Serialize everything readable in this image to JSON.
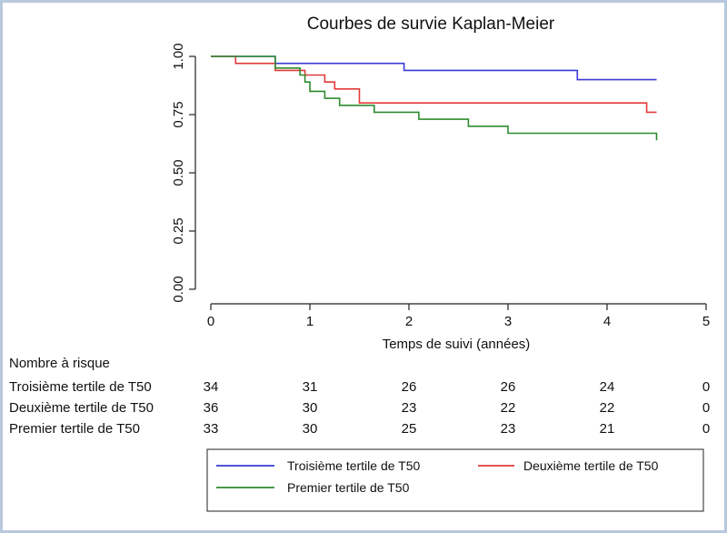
{
  "chart_data": {
    "type": "line",
    "title": "Courbes de survie Kaplan-Meier",
    "xlabel": "Temps de suivi (années)",
    "ylabel": "",
    "xlim": [
      0,
      5
    ],
    "ylim": [
      0,
      1
    ],
    "x_ticks": [
      "0",
      "1",
      "2",
      "3",
      "4",
      "5"
    ],
    "y_ticks": [
      "0.00",
      "0.25",
      "0.50",
      "0.75",
      "1.00"
    ],
    "grid": false,
    "legend_position": "bottom",
    "series": [
      {
        "name": "Troisième tertile de T50",
        "color": "#3a3ad6",
        "points": [
          [
            0,
            1.0
          ],
          [
            0.65,
            1.0
          ],
          [
            0.65,
            0.97
          ],
          [
            1.95,
            0.97
          ],
          [
            1.95,
            0.94
          ],
          [
            3.7,
            0.94
          ],
          [
            3.7,
            0.9
          ],
          [
            4.5,
            0.9
          ]
        ]
      },
      {
        "name": "Deuxième tertile de T50",
        "color": "#e23a3a",
        "points": [
          [
            0,
            1.0
          ],
          [
            0.25,
            1.0
          ],
          [
            0.25,
            0.97
          ],
          [
            0.65,
            0.97
          ],
          [
            0.65,
            0.94
          ],
          [
            0.95,
            0.94
          ],
          [
            0.95,
            0.92
          ],
          [
            1.15,
            0.92
          ],
          [
            1.15,
            0.89
          ],
          [
            1.25,
            0.89
          ],
          [
            1.25,
            0.86
          ],
          [
            1.5,
            0.86
          ],
          [
            1.5,
            0.8
          ],
          [
            4.4,
            0.8
          ],
          [
            4.4,
            0.76
          ],
          [
            4.5,
            0.76
          ]
        ]
      },
      {
        "name": "Premier tertile de T50",
        "color": "#2e8b2e",
        "points": [
          [
            0,
            1.0
          ],
          [
            0.65,
            1.0
          ],
          [
            0.65,
            0.95
          ],
          [
            0.9,
            0.95
          ],
          [
            0.9,
            0.92
          ],
          [
            0.95,
            0.92
          ],
          [
            0.95,
            0.89
          ],
          [
            1.0,
            0.89
          ],
          [
            1.0,
            0.85
          ],
          [
            1.15,
            0.85
          ],
          [
            1.15,
            0.82
          ],
          [
            1.3,
            0.82
          ],
          [
            1.3,
            0.79
          ],
          [
            1.65,
            0.79
          ],
          [
            1.65,
            0.76
          ],
          [
            2.1,
            0.76
          ],
          [
            2.1,
            0.73
          ],
          [
            2.6,
            0.73
          ],
          [
            2.6,
            0.7
          ],
          [
            3.0,
            0.7
          ],
          [
            3.0,
            0.67
          ],
          [
            4.5,
            0.67
          ],
          [
            4.5,
            0.64
          ]
        ]
      }
    ],
    "risk_table": {
      "title": "Nombre à risque",
      "times": [
        0,
        1,
        2,
        3,
        4,
        5
      ],
      "rows": [
        {
          "label": "Troisième tertile de T50",
          "values": [
            "34",
            "31",
            "26",
            "26",
            "24",
            "0"
          ]
        },
        {
          "label": "Deuxième tertile de T50",
          "values": [
            "36",
            "30",
            "23",
            "22",
            "22",
            "0"
          ]
        },
        {
          "label": "Premier tertile de T50",
          "values": [
            "33",
            "30",
            "25",
            "23",
            "21",
            "0"
          ]
        }
      ]
    }
  }
}
